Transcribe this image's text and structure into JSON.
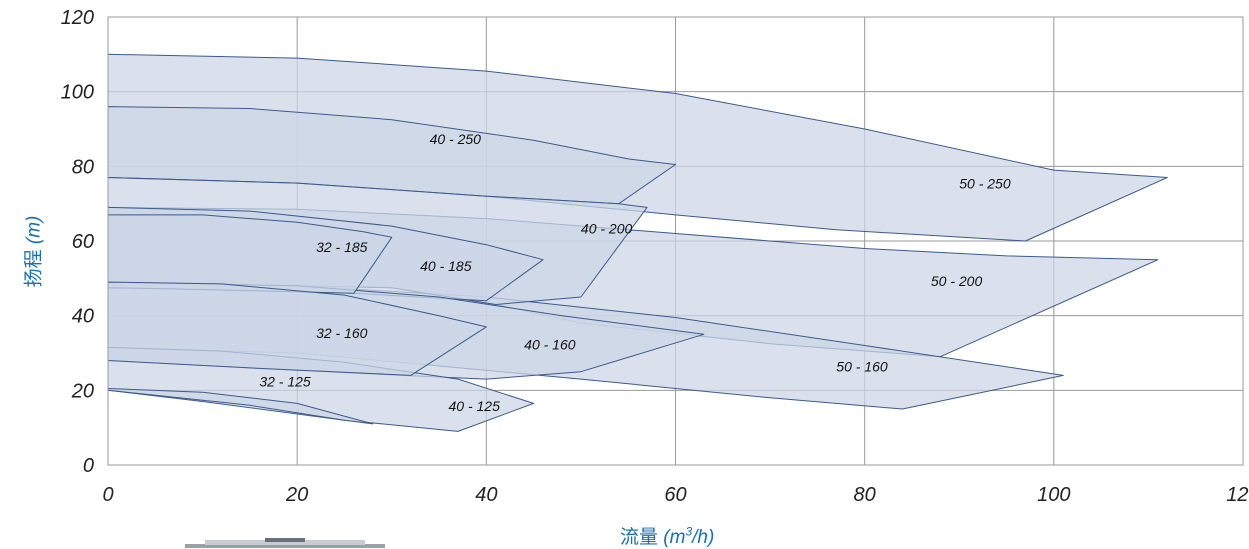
{
  "chart_data": {
    "type": "area",
    "xlabel": {
      "name": "流量",
      "unit": "m",
      "sup": "3",
      "unit_tail": "/h"
    },
    "ylabel": {
      "name": "扬程",
      "unit": "(m)"
    },
    "xlim": [
      0,
      120
    ],
    "ylim": [
      0,
      120
    ],
    "xticks": [
      "0",
      "20",
      "40",
      "60",
      "80",
      "100",
      "120"
    ],
    "yticks": [
      "0",
      "20",
      "40",
      "60",
      "80",
      "100",
      "120"
    ],
    "grid": true,
    "fill_color": "#ccd6e6",
    "edge_color": "#3b5a8c",
    "grid_color": "#9a9a9a",
    "series": [
      {
        "name": "50 - 250",
        "label_at": [
          90,
          74
        ],
        "points": [
          [
            0,
            110
          ],
          [
            20,
            109
          ],
          [
            40,
            105.5
          ],
          [
            60,
            99.5
          ],
          [
            80,
            90
          ],
          [
            100,
            79
          ],
          [
            112,
            77
          ],
          [
            97,
            60
          ],
          [
            77,
            63
          ],
          [
            60,
            67
          ],
          [
            40,
            72
          ],
          [
            20,
            75.5
          ],
          [
            0,
            77
          ]
        ]
      },
      {
        "name": "50 - 200",
        "label_at": [
          87,
          48
        ],
        "points": [
          [
            0,
            69
          ],
          [
            20,
            68.5
          ],
          [
            40,
            66
          ],
          [
            60,
            62
          ],
          [
            80,
            58
          ],
          [
            95,
            56
          ],
          [
            111,
            55
          ],
          [
            88,
            29
          ],
          [
            70,
            32.5
          ],
          [
            50,
            38
          ],
          [
            41,
            43
          ],
          [
            30,
            47.5
          ],
          [
            0,
            49
          ]
        ]
      },
      {
        "name": "50 - 160",
        "label_at": [
          77,
          25
        ],
        "points": [
          [
            0,
            49
          ],
          [
            20,
            48
          ],
          [
            40,
            45
          ],
          [
            60,
            39.5
          ],
          [
            80,
            32
          ],
          [
            101,
            24
          ],
          [
            84,
            15
          ],
          [
            70,
            18
          ],
          [
            50,
            23
          ],
          [
            33,
            27
          ],
          [
            20,
            30
          ],
          [
            0,
            31.5
          ]
        ]
      },
      {
        "name": "40 - 250",
        "label_at": [
          34,
          86
        ],
        "points": [
          [
            0,
            96
          ],
          [
            15,
            95.5
          ],
          [
            30,
            92.5
          ],
          [
            45,
            87
          ],
          [
            55,
            82
          ],
          [
            60,
            80.5
          ],
          [
            54,
            70
          ],
          [
            40,
            72
          ],
          [
            20,
            75.5
          ],
          [
            0,
            77
          ]
        ]
      },
      {
        "name": "40 - 200",
        "label_at": [
          50,
          62
        ],
        "points": [
          [
            0,
            77
          ],
          [
            20,
            75.5
          ],
          [
            40,
            72
          ],
          [
            54,
            70
          ],
          [
            57,
            69
          ],
          [
            50,
            45
          ],
          [
            41,
            43
          ],
          [
            30,
            47.5
          ],
          [
            0,
            49
          ]
        ]
      },
      {
        "name": "40 - 185",
        "label_at": [
          33,
          52
        ],
        "points": [
          [
            0,
            69
          ],
          [
            15,
            68
          ],
          [
            30,
            64
          ],
          [
            40,
            59
          ],
          [
            46,
            55
          ],
          [
            40,
            44
          ],
          [
            26,
            46
          ],
          [
            10,
            47
          ],
          [
            0,
            47.5
          ]
        ]
      },
      {
        "name": "40 - 160",
        "label_at": [
          44,
          31
        ],
        "points": [
          [
            0,
            49
          ],
          [
            20,
            48
          ],
          [
            35,
            45
          ],
          [
            48,
            40
          ],
          [
            63,
            35
          ],
          [
            50,
            25
          ],
          [
            40,
            23
          ],
          [
            31,
            24
          ],
          [
            15,
            26
          ],
          [
            0,
            28
          ]
        ]
      },
      {
        "name": "40 - 125",
        "label_at": [
          36,
          14.5
        ],
        "points": [
          [
            0,
            31.5
          ],
          [
            12,
            30.5
          ],
          [
            25,
            27.5
          ],
          [
            37,
            23
          ],
          [
            45,
            16.5
          ],
          [
            37,
            9
          ],
          [
            25,
            12
          ],
          [
            10,
            17
          ],
          [
            0,
            20
          ]
        ]
      },
      {
        "name": "32 - 185",
        "label_at": [
          22,
          57
        ],
        "points": [
          [
            0,
            67
          ],
          [
            10,
            67
          ],
          [
            20,
            65
          ],
          [
            27,
            62.5
          ],
          [
            30,
            61
          ],
          [
            26,
            46
          ],
          [
            10,
            47
          ],
          [
            0,
            47.5
          ]
        ]
      },
      {
        "name": "32 - 160",
        "label_at": [
          22,
          34
        ],
        "points": [
          [
            0,
            49
          ],
          [
            12,
            48.5
          ],
          [
            25,
            45.5
          ],
          [
            35,
            40
          ],
          [
            40,
            37
          ],
          [
            32,
            24
          ],
          [
            15,
            26
          ],
          [
            0,
            28
          ]
        ]
      },
      {
        "name": "32 - 125",
        "label_at": [
          16,
          21
        ],
        "points": [
          [
            0,
            20.5
          ],
          [
            10,
            19.5
          ],
          [
            20,
            16.5
          ],
          [
            28,
            11
          ],
          [
            25,
            12
          ],
          [
            15,
            16
          ],
          [
            0,
            20
          ]
        ]
      }
    ]
  }
}
